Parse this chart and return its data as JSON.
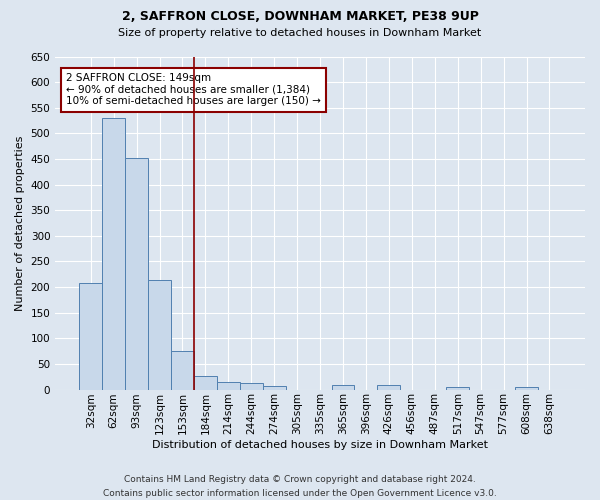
{
  "title": "2, SAFFRON CLOSE, DOWNHAM MARKET, PE38 9UP",
  "subtitle": "Size of property relative to detached houses in Downham Market",
  "xlabel": "Distribution of detached houses by size in Downham Market",
  "ylabel": "Number of detached properties",
  "footer_line1": "Contains HM Land Registry data © Crown copyright and database right 2024.",
  "footer_line2": "Contains public sector information licensed under the Open Government Licence v3.0.",
  "categories": [
    "32sqm",
    "62sqm",
    "93sqm",
    "123sqm",
    "153sqm",
    "184sqm",
    "214sqm",
    "244sqm",
    "274sqm",
    "305sqm",
    "335sqm",
    "365sqm",
    "396sqm",
    "426sqm",
    "456sqm",
    "487sqm",
    "517sqm",
    "547sqm",
    "577sqm",
    "608sqm",
    "638sqm"
  ],
  "values": [
    207,
    530,
    452,
    213,
    75,
    26,
    15,
    13,
    7,
    0,
    0,
    8,
    0,
    8,
    0,
    0,
    5,
    0,
    0,
    5,
    0
  ],
  "bar_color": "#c8d8ea",
  "bar_edge_color": "#5080b0",
  "bar_width": 1.0,
  "vline_x": 4.5,
  "vline_color": "#8b0000",
  "annotation_text": "2 SAFFRON CLOSE: 149sqm\n← 90% of detached houses are smaller (1,384)\n10% of semi-detached houses are larger (150) →",
  "ylim": [
    0,
    650
  ],
  "yticks": [
    0,
    50,
    100,
    150,
    200,
    250,
    300,
    350,
    400,
    450,
    500,
    550,
    600,
    650
  ],
  "bg_color": "#dde6f0",
  "plot_bg_color": "#dde6f0",
  "grid_color": "#ffffff",
  "title_fontsize": 9,
  "subtitle_fontsize": 8,
  "axis_label_fontsize": 8,
  "tick_fontsize": 7.5,
  "annotation_fontsize": 7.5,
  "footer_fontsize": 6.5
}
